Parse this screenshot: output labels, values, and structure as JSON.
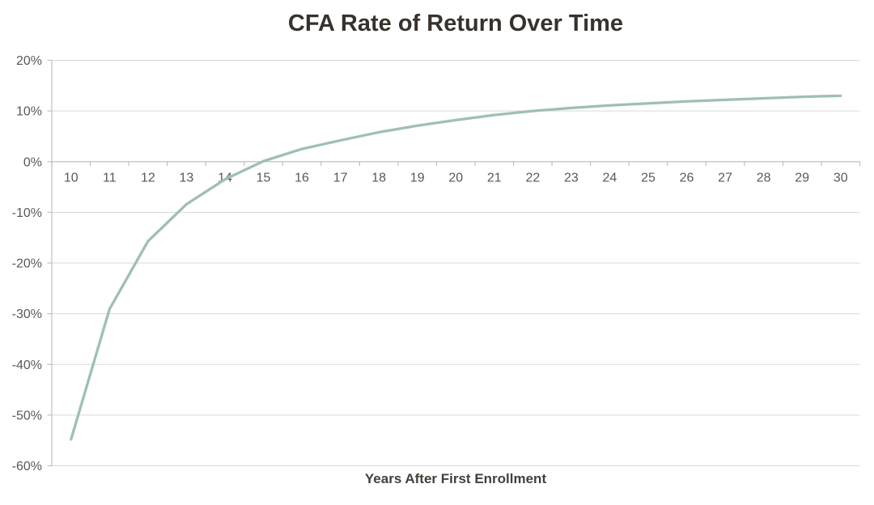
{
  "chart_data": {
    "type": "line",
    "title": "CFA Rate of Return Over Time",
    "xlabel": "Years After First Enrollment",
    "ylabel": "",
    "categories": [
      10,
      11,
      12,
      13,
      14,
      15,
      16,
      17,
      18,
      19,
      20,
      21,
      22,
      23,
      24,
      25,
      26,
      27,
      28,
      29,
      30
    ],
    "values": [
      -54.8,
      -29.1,
      -15.7,
      -8.4,
      -3.5,
      0.1,
      2.5,
      4.2,
      5.8,
      7.1,
      8.2,
      9.2,
      10.0,
      10.6,
      11.1,
      11.5,
      11.9,
      12.2,
      12.5,
      12.8,
      13.0
    ],
    "ylim": [
      -60,
      20
    ],
    "ytick_step": 10,
    "ytick_labels": [
      "20%",
      "10%",
      "0%",
      "-10%",
      "-20%",
      "-30%",
      "-40%",
      "-50%",
      "-60%"
    ],
    "grid": true,
    "legend": false,
    "colors": {
      "line": "#9fbeb9",
      "grid": "#d9d9d9",
      "axis": "#c0c0c0",
      "tick_label": "#595959",
      "title": "#37322c",
      "axis_title": "#44403a",
      "background": "#ffffff"
    }
  }
}
